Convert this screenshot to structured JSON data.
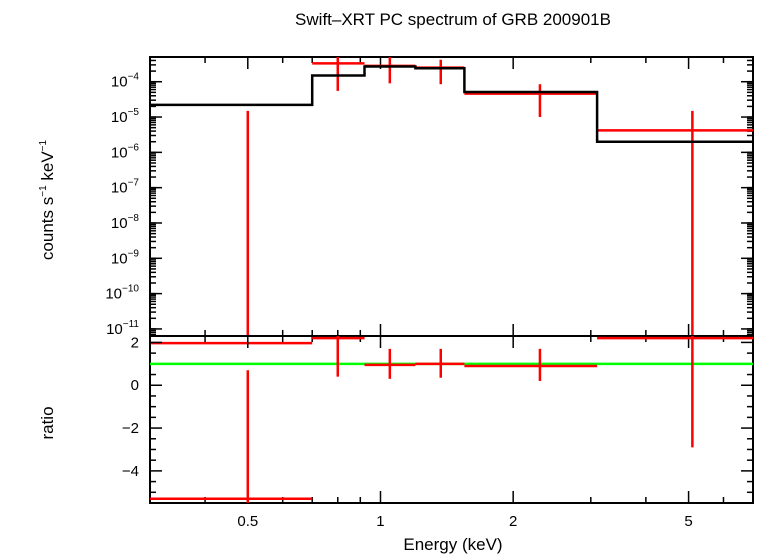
{
  "chart_data": {
    "title": "Swift–XRT PC spectrum of GRB 200901B",
    "xlabel": "Energy (keV)",
    "x_scale": "log",
    "xlim": [
      0.3,
      7.0
    ],
    "x_ticks": [
      {
        "value": 0.5,
        "label": "0.5"
      },
      {
        "value": 1,
        "label": "1"
      },
      {
        "value": 2,
        "label": "2"
      },
      {
        "value": 5,
        "label": "5"
      }
    ],
    "colors": {
      "data": "#ff0000",
      "model": "#000000",
      "reference": "#00ff00",
      "frame": "#000000"
    },
    "panels": [
      {
        "id": "spectrum",
        "type": "line",
        "y_scale": "log",
        "ylabel_main": "counts s",
        "ylabel_exp1": "−1",
        "ylabel_mid": " keV",
        "ylabel_exp2": "−1",
        "ylim_log10": [
          -11.2,
          -3.3
        ],
        "y_ticks": [
          {
            "base": "10",
            "exp": "−4",
            "log10": -4
          },
          {
            "base": "10",
            "exp": "−5",
            "log10": -5
          },
          {
            "base": "10",
            "exp": "−6",
            "log10": -6
          },
          {
            "base": "10",
            "exp": "−7",
            "log10": -7
          },
          {
            "base": "10",
            "exp": "−8",
            "log10": -8
          },
          {
            "base": "10",
            "exp": "−9",
            "log10": -9
          },
          {
            "base": "10",
            "exp": "−10",
            "log10": -10
          },
          {
            "base": "10",
            "exp": "−11",
            "log10": -11
          }
        ],
        "series": [
          {
            "type": "errorbar",
            "points": [
              {
                "x": 0.5,
                "xlo": 0.3,
                "xhi": 0.7,
                "y": 1e-12,
                "ylo": 1e-12,
                "yhi": 1.5e-05
              },
              {
                "x": 0.8,
                "xlo": 0.7,
                "xhi": 0.92,
                "y": 0.00033,
                "ylo": 5.5e-05,
                "yhi": 0.00075
              },
              {
                "x": 1.05,
                "xlo": 0.92,
                "xhi": 1.2,
                "y": 0.00028,
                "ylo": 9e-05,
                "yhi": 0.0006
              },
              {
                "x": 1.37,
                "xlo": 1.2,
                "xhi": 1.55,
                "y": 0.00025,
                "ylo": 8.5e-05,
                "yhi": 0.00042
              },
              {
                "x": 2.3,
                "xlo": 1.55,
                "xhi": 3.1,
                "y": 4.6e-05,
                "ylo": 1e-05,
                "yhi": 8.5e-05
              },
              {
                "x": 5.1,
                "xlo": 3.1,
                "xhi": 7.0,
                "y": 4.2e-06,
                "ylo": 1e-12,
                "yhi": 1.5e-05
              }
            ]
          },
          {
            "type": "step",
            "edges": [
              0.3,
              0.7,
              0.92,
              1.2,
              1.55,
              3.1,
              7.0
            ],
            "values": [
              2.2e-05,
              0.00015,
              0.00027,
              0.00024,
              5.1e-05,
              2e-06
            ]
          }
        ]
      },
      {
        "id": "ratio",
        "type": "line",
        "y_scale": "linear",
        "ylabel": "ratio",
        "ylim": [
          -5.5,
          2.3
        ],
        "y_ticks": [
          {
            "value": 2,
            "label": "2"
          },
          {
            "value": 0,
            "label": "0"
          },
          {
            "value": -2,
            "label": "−2"
          },
          {
            "value": -4,
            "label": "−4"
          }
        ],
        "reference_line": 1,
        "series": [
          {
            "type": "errorbar",
            "points": [
              {
                "x": 0.5,
                "xlo": 0.3,
                "xhi": 0.7,
                "y": -5.3,
                "ylo": -5.5,
                "yhi": 0.7
              },
              {
                "x": 0.8,
                "xlo": 0.7,
                "xhi": 0.92,
                "y": 2.2,
                "ylo": 0.4,
                "yhi": 2.3
              },
              {
                "x": 1.05,
                "xlo": 0.92,
                "xhi": 1.2,
                "y": 0.95,
                "ylo": 0.3,
                "yhi": 1.7
              },
              {
                "x": 1.37,
                "xlo": 1.2,
                "xhi": 1.55,
                "y": 1.0,
                "ylo": 0.35,
                "yhi": 1.7
              },
              {
                "x": 2.3,
                "xlo": 1.55,
                "xhi": 3.1,
                "y": 0.9,
                "ylo": 0.2,
                "yhi": 1.7
              },
              {
                "x": 5.1,
                "xlo": 3.1,
                "xhi": 7.0,
                "y": 2.2,
                "ylo": -2.9,
                "yhi": 2.3
              }
            ]
          }
        ]
      }
    ]
  }
}
